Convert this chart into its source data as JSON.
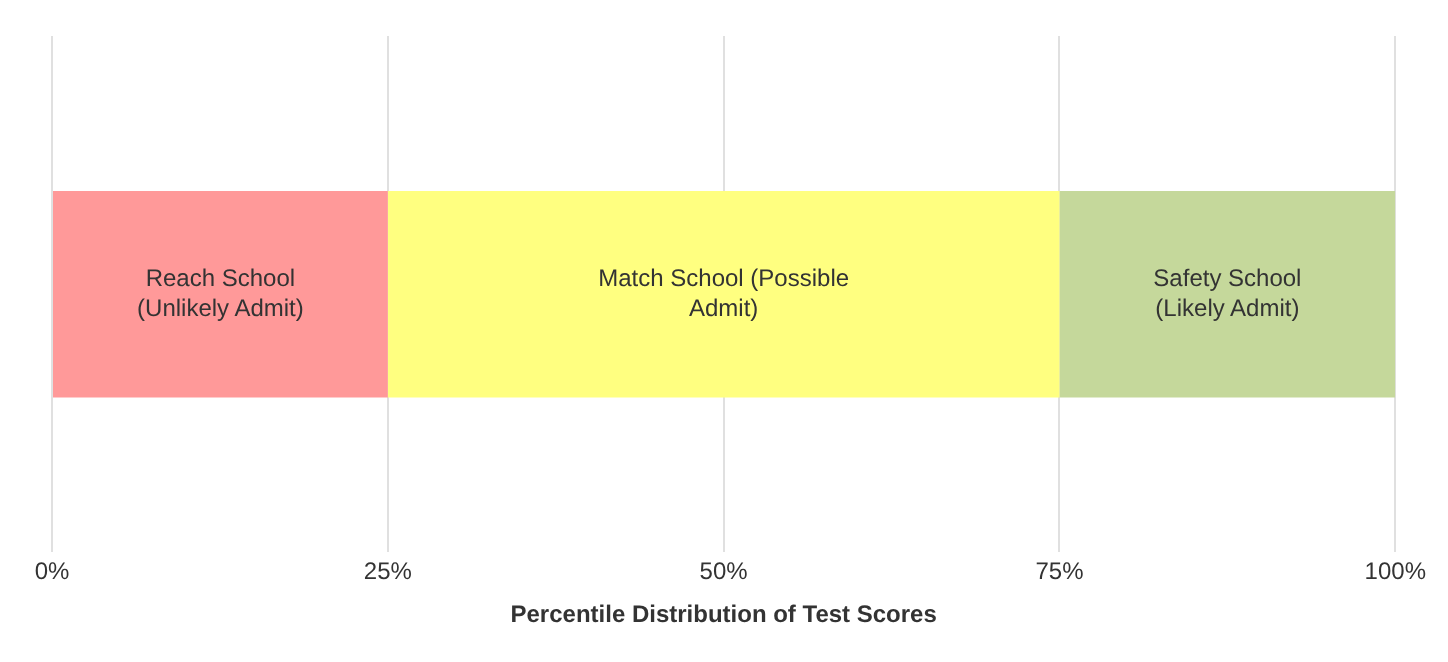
{
  "chart_data": {
    "type": "bar",
    "orientation": "horizontal",
    "stacked": true,
    "categories": [
      null
    ],
    "series": [
      {
        "name": "Reach School (Unlikely Admit)",
        "color": "#ff9999",
        "values": [
          25
        ]
      },
      {
        "name": "Match School (Possible Admit)",
        "color": "#ffff80",
        "values": [
          50
        ]
      },
      {
        "name": "Safety School (Likely Admit)",
        "color": "#c5d89b",
        "values": [
          25
        ]
      }
    ],
    "xlim": [
      0,
      100
    ],
    "xticks": [
      {
        "value": 0,
        "label": "0%"
      },
      {
        "value": 25,
        "label": "25%"
      },
      {
        "value": 50,
        "label": "50%"
      },
      {
        "value": 75,
        "label": "75%"
      },
      {
        "value": 100,
        "label": "100%"
      }
    ],
    "xlabel": "Percentile Distribution of Test Scores",
    "grid": "x",
    "tick_labels": "x",
    "legend": false
  }
}
